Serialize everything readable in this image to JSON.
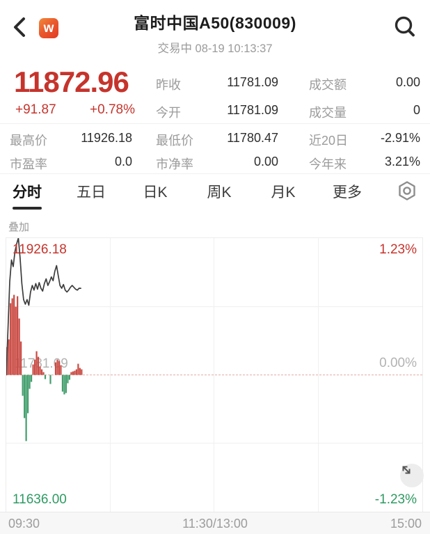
{
  "header": {
    "title": "富时中国A50(830009)",
    "subtitle": "交易中 08-19 10:13:37",
    "logo_text": "w",
    "icons": {
      "back": "chevron-left",
      "search": "magnifier",
      "settings": "hex-nut",
      "expand": "diagonal-double-arrow"
    }
  },
  "quote": {
    "price": "11872.96",
    "change": "+91.87",
    "change_pct": "+0.78%",
    "up_color": "#c5342c",
    "down_color": "#2e9a62"
  },
  "stats": {
    "top4": [
      {
        "label": "昨收",
        "value": "11781.09"
      },
      {
        "label": "成交额",
        "value": "0.00"
      },
      {
        "label": "今开",
        "value": "11781.09"
      },
      {
        "label": "成交量",
        "value": "0"
      }
    ],
    "bottom6": [
      {
        "label": "最高价",
        "value": "11926.18"
      },
      {
        "label": "最低价",
        "value": "11780.47"
      },
      {
        "label": "近20日",
        "value": "-2.91%"
      },
      {
        "label": "市盈率",
        "value": "0.0"
      },
      {
        "label": "市净率",
        "value": "0.00"
      },
      {
        "label": "今年来",
        "value": "3.21%"
      }
    ]
  },
  "tabs": {
    "active_index": 0,
    "items": [
      {
        "name": "tab-intraday",
        "label": "分时"
      },
      {
        "name": "tab-five-day",
        "label": "五日"
      },
      {
        "name": "tab-daily-k",
        "label": "日K"
      },
      {
        "name": "tab-weekly-k",
        "label": "周K"
      },
      {
        "name": "tab-monthly-k",
        "label": "月K"
      },
      {
        "name": "tab-more",
        "label": "更多"
      }
    ]
  },
  "overlay_label": "叠加",
  "chart_data": {
    "type": "line",
    "subtype": "intraday-price-with-volume-bars",
    "session_minutes": 240,
    "y_axis": {
      "high": 11926.18,
      "mid": 11781.09,
      "low": 11636.0,
      "high_label": "11926.18",
      "mid_label": "11781.09",
      "low_label": "11636.00",
      "pct_high": "1.23%",
      "pct_mid": "0.00%",
      "pct_low": "-1.23%"
    },
    "x_labels": [
      "09:30",
      "11:30/13:00",
      "15:00"
    ],
    "grid": {
      "v_divisions": 4,
      "h_divisions": 4,
      "midline_dashed": true
    },
    "line": {
      "name": "price",
      "color": "#3c3c3c",
      "minutes": [
        0,
        1,
        2,
        3,
        4,
        5,
        6,
        7,
        8,
        9,
        10,
        11,
        12,
        13,
        14,
        15,
        16,
        17,
        18,
        19,
        20,
        21,
        22,
        23,
        24,
        25,
        26,
        27,
        28,
        29,
        30,
        31,
        32,
        33,
        34,
        35,
        36,
        37,
        38,
        39,
        40,
        41,
        42,
        43
      ],
      "values": [
        11781.09,
        11830,
        11880,
        11903,
        11896,
        11912,
        11920,
        11926.18,
        11905,
        11878,
        11861,
        11856,
        11861,
        11855,
        11869,
        11876,
        11871,
        11878,
        11872,
        11879,
        11873,
        11870,
        11878,
        11883,
        11876,
        11880,
        11885,
        11881,
        11891,
        11897,
        11886,
        11876,
        11873,
        11877,
        11871,
        11869,
        11871,
        11874,
        11876,
        11874,
        11872,
        11871,
        11873,
        11872.96
      ]
    },
    "bars": {
      "name": "minute-volume",
      "up_color": "#ca4a43",
      "down_color": "#439e6d",
      "minutes": [
        0,
        1,
        2,
        3,
        4,
        5,
        6,
        7,
        8,
        9,
        10,
        11,
        12,
        13,
        14,
        15,
        16,
        17,
        18,
        19,
        20,
        21,
        22,
        23,
        24,
        25,
        26,
        27,
        28,
        29,
        30,
        31,
        32,
        33,
        34,
        35,
        36,
        37,
        38,
        39,
        40,
        41,
        42,
        43
      ],
      "values": [
        40,
        51,
        103,
        110,
        115,
        98,
        113,
        81,
        48,
        -30,
        -62,
        -95,
        -55,
        -20,
        -10,
        15,
        22,
        34,
        26,
        12,
        8,
        4,
        -6,
        0,
        0,
        -13,
        0,
        0,
        18,
        22,
        20,
        14,
        -24,
        -28,
        -26,
        -12,
        -7,
        4,
        5,
        6,
        8,
        16,
        10,
        8
      ]
    }
  }
}
